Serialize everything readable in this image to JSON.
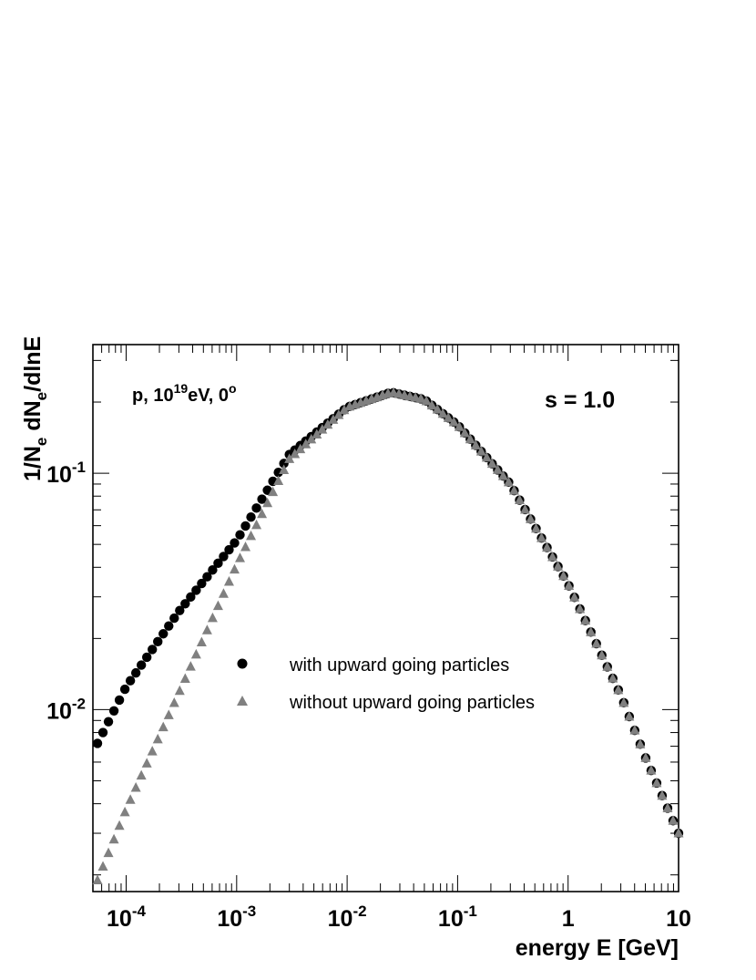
{
  "chart_data": {
    "type": "scatter",
    "title": "",
    "xlabel": "energy E [GeV]",
    "ylabel": "1/N_e dN_e/dlnE",
    "x_scale": "log",
    "y_scale": "log",
    "xlim": [
      5e-05,
      10
    ],
    "ylim": [
      0.0017,
      0.35
    ],
    "x_ticks": [
      {
        "base": "10",
        "exp": "-4",
        "value": 0.0001
      },
      {
        "base": "10",
        "exp": "-3",
        "value": 0.001
      },
      {
        "base": "10",
        "exp": "-2",
        "value": 0.01
      },
      {
        "base": "10",
        "exp": "-1",
        "value": 0.1
      },
      {
        "base": "1",
        "exp": "",
        "value": 1
      },
      {
        "base": "10",
        "exp": "",
        "value": 10
      }
    ],
    "y_ticks": [
      {
        "base": "10",
        "exp": "-2",
        "value": 0.01
      },
      {
        "base": "10",
        "exp": "-1",
        "value": 0.1
      }
    ],
    "annotations": {
      "primary": {
        "prefix": "p, 10",
        "exp1": "19",
        "mid": "eV, 0",
        "exp2": "o"
      },
      "radius": "s = 1.0"
    },
    "grid": false,
    "legend_position": "center-left",
    "colors": {
      "with_upward": "#000000",
      "without_upward": "#808080"
    },
    "series": [
      {
        "name": "with upward going particles",
        "marker": "circle",
        "x_range": [
          5.5e-05,
          10
        ],
        "anchors": [
          [
            5.5e-05,
            0.0072
          ],
          [
            0.0001,
            0.0125
          ],
          [
            0.0003,
            0.026
          ],
          [
            0.001,
            0.052
          ],
          [
            0.003,
            0.12
          ],
          [
            0.01,
            0.19
          ],
          [
            0.025,
            0.22
          ],
          [
            0.05,
            0.205
          ],
          [
            0.1,
            0.16
          ],
          [
            0.3,
            0.09
          ],
          [
            1,
            0.034
          ],
          [
            3,
            0.0115
          ],
          [
            5,
            0.0063
          ],
          [
            10,
            0.003
          ]
        ]
      },
      {
        "name": "without upward going particles",
        "marker": "triangle",
        "x_range": [
          5.5e-05,
          10
        ],
        "anchors": [
          [
            5.5e-05,
            0.0019
          ],
          [
            0.0001,
            0.0038
          ],
          [
            0.0003,
            0.0118
          ],
          [
            0.001,
            0.041
          ],
          [
            0.003,
            0.115
          ],
          [
            0.01,
            0.19
          ],
          [
            0.025,
            0.22
          ],
          [
            0.05,
            0.205
          ],
          [
            0.1,
            0.16
          ],
          [
            0.3,
            0.09
          ],
          [
            1,
            0.034
          ],
          [
            3,
            0.0115
          ],
          [
            5,
            0.0063
          ],
          [
            10,
            0.003
          ]
        ]
      }
    ]
  }
}
